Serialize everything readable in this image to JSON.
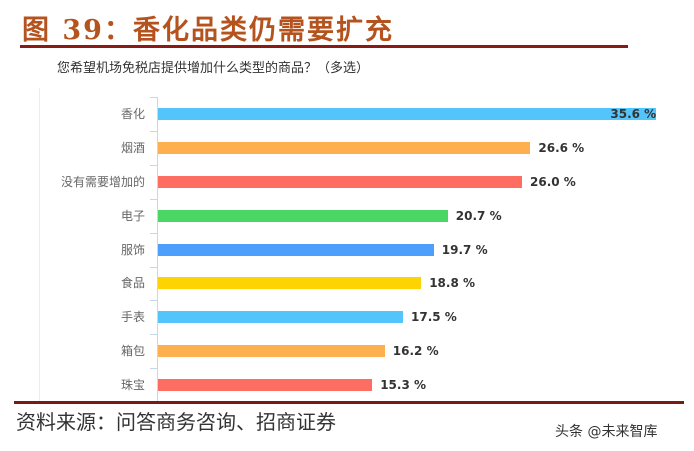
{
  "header": {
    "figure_title": "图 39：香化品类仍需要扩充"
  },
  "chart_data": {
    "type": "bar",
    "orientation": "horizontal",
    "title": "您希望机场免税店提供增加什么类型的商品？（多选）",
    "xlabel": "",
    "ylabel": "",
    "unit": "%",
    "grid": false,
    "legend": null,
    "categories": [
      "香化",
      "烟酒",
      "没有需要增加的",
      "电子",
      "服饰",
      "食品",
      "手表",
      "箱包",
      "珠宝"
    ],
    "values": [
      35.6,
      26.6,
      26.0,
      20.7,
      19.7,
      18.8,
      17.5,
      16.2,
      15.3
    ],
    "value_labels": [
      "35.6 %",
      "26.6 %",
      "26.0 %",
      "20.7 %",
      "19.7 %",
      "18.8 %",
      "17.5 %",
      "16.2 %",
      "15.3 %"
    ],
    "colors": [
      "#54c5fb",
      "#fdb04d",
      "#fe6d62",
      "#4bd765",
      "#4e9ffc",
      "#fed302",
      "#54c5fb",
      "#fdb04d",
      "#fe6d62"
    ],
    "xlim": [
      0,
      36
    ]
  },
  "footer": {
    "source": "资料来源：问答商务咨询、招商证券",
    "watermark": "头条 @未来智库"
  }
}
